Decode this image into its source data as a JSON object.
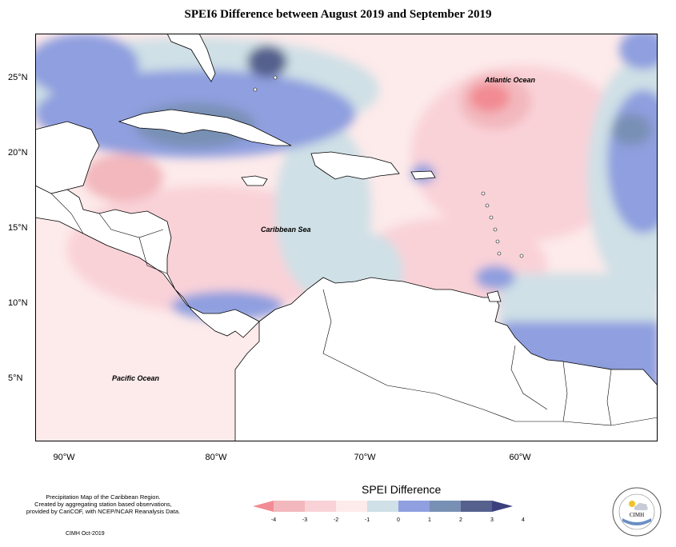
{
  "title": "SPEI6 Difference between August 2019 and September 2019",
  "map": {
    "region": "Caribbean",
    "labels": {
      "atlantic": "Atlantic Ocean",
      "caribbean": "Caribbean Sea",
      "pacific": "Pacific Ocean"
    },
    "lat_ticks": [
      "25°N",
      "20°N",
      "15°N",
      "10°N",
      "5°N"
    ],
    "lon_ticks": [
      "90°W",
      "80°W",
      "70°W",
      "60°W"
    ]
  },
  "legend": {
    "title": "SPEI Difference",
    "ticks": [
      "-4",
      "-3",
      "-2",
      "-1",
      "0",
      "1",
      "2",
      "3",
      "4"
    ],
    "colors": [
      "#f28b93",
      "#f2b8bd",
      "#f9d2d8",
      "#fdeaea",
      "#cfe0e6",
      "#8f9fdf",
      "#7990b5",
      "#55608d",
      "#3c3f7e"
    ]
  },
  "credits": {
    "line1": "Precipitation Map of the Caribbean Region.",
    "line2": "Created by aggregating station based observations,",
    "line3": "provided by CariCOF, with NCEP/NCAR Reanalysis Data.",
    "date": "CIMH Oct-2019"
  },
  "logo": {
    "text": "CIMH"
  }
}
